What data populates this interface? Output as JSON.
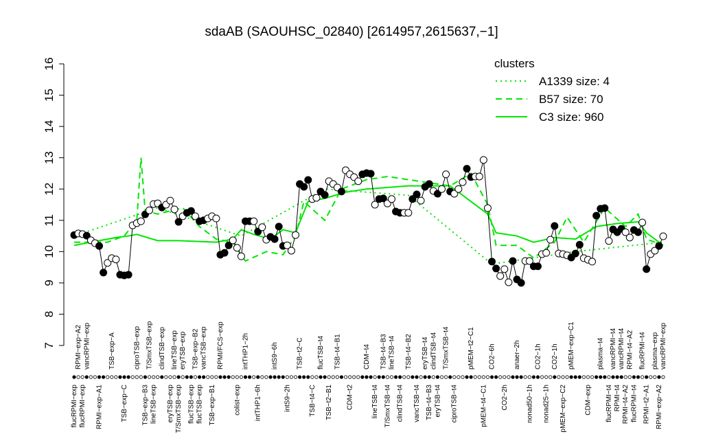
{
  "chart_data": {
    "type": "scatter",
    "title": "sdaAB (SAOUHSC_02840) [2614957,2615637,−1]",
    "ylim": [
      7,
      16
    ],
    "yticks": [
      7,
      8,
      9,
      10,
      11,
      12,
      13,
      14,
      15,
      16
    ],
    "categories": [
      "flucRPMI−exp",
      "RPMI−exp−A2",
      "flucRPMI−exp",
      "vancRPMI−exp",
      null,
      null,
      "RPMI−exp−A1",
      null,
      null,
      "TSB−exp−A",
      null,
      null,
      "TSB−exp−C",
      null,
      null,
      "ciproTSB−exp",
      null,
      "TSB−exp−B3",
      "T/SmxTSB−exp",
      "lineTSB−exp",
      null,
      "clindTSB−exp",
      null,
      "eryTSB−exp",
      "lineTSB−exp",
      "T/SmxTSB−exp",
      "eryTSB−exp",
      null,
      "flucTSB−exp",
      "TSB−exp−B2",
      "flucTSB−exp",
      "vancTSB−exp",
      null,
      "TSB−exp−B1",
      null,
      "RPMI/FCS−exp",
      null,
      null,
      null,
      "colist−exp",
      null,
      "intTHP1−2h",
      null,
      null,
      "intTHP1−6h",
      null,
      null,
      null,
      "intS9−6h",
      null,
      null,
      "intS9−2h",
      null,
      null,
      "TSB−t2−C",
      null,
      null,
      "TSB−t4−C",
      null,
      "flucTSB−t4",
      null,
      "TSB−t2−B1",
      null,
      "TSB−t4−B1",
      null,
      null,
      "CDM−t2",
      null,
      null,
      null,
      "CDM−t4",
      null,
      "lineTSB−t4",
      null,
      "TSB−t4−B3",
      "T/SmxTSB−t4",
      "lineTSB−t4",
      null,
      "clindTSB−t4",
      null,
      "TSB−t4−B2",
      null,
      "vancTSB−t4",
      null,
      "eryTSB−t4",
      "TSB−t4−B3",
      "clindTSB−t4",
      "eryTSB−t4",
      null,
      "T/SmxTSB−t4",
      null,
      "ciproTSB−t4",
      null,
      null,
      null,
      "pMEM−t2−C1",
      null,
      null,
      "pMEM−t4−C1",
      null,
      "CO2−6h",
      null,
      null,
      "CO2−2h",
      null,
      null,
      "anaer−2h",
      null,
      null,
      "nonad50−1h",
      null,
      "CO2−1h",
      null,
      "nonad25−1h",
      null,
      "CO2−1h",
      null,
      "pMEM−exp−C2",
      null,
      "pMEM−exp−C1",
      null,
      null,
      null,
      "CDM−exp",
      null,
      null,
      "plasma−t4",
      null,
      "flucRPMI−t4",
      "vancRPMI−t4",
      "RPMI−t4",
      "vancRPMI−t4",
      "RPMI−t4−A2",
      "RPMI−t4−A2",
      "flucRPMI−t4",
      null,
      "flucRPMI−t4",
      "RPMI−t2−A1",
      null,
      "plasma−exp",
      "RPMI−exp−A2",
      "vancRPMI−exp"
    ],
    "values": [
      10.53,
      10.58,
      10.56,
      10.51,
      10.36,
      10.27,
      10.18,
      9.33,
      9.64,
      9.79,
      9.75,
      9.26,
      9.24,
      9.26,
      10.84,
      10.91,
      10.97,
      11.19,
      11.32,
      11.52,
      11.54,
      11.41,
      11.5,
      11.63,
      11.35,
      10.95,
      11.13,
      11.24,
      11.3,
      11.13,
      10.97,
      11.0,
      11.06,
      11.13,
      11.06,
      9.9,
      9.96,
      10.2,
      10.36,
      10.12,
      9.85,
      10.97,
      10.97,
      10.97,
      10.64,
      10.78,
      10.38,
      10.47,
      10.4,
      10.8,
      10.18,
      10.2,
      10.03,
      10.53,
      12.16,
      12.07,
      12.29,
      11.68,
      11.72,
      11.92,
      11.81,
      12.25,
      12.16,
      12.05,
      11.92,
      12.6,
      12.47,
      12.38,
      12.25,
      12.47,
      12.51,
      12.49,
      11.5,
      11.68,
      11.7,
      11.54,
      11.68,
      11.28,
      11.24,
      11.24,
      11.24,
      11.68,
      11.83,
      11.63,
      12.07,
      12.16,
      11.94,
      11.85,
      12.0,
      12.47,
      11.92,
      11.85,
      12.0,
      12.22,
      12.65,
      12.38,
      12.4,
      12.4,
      12.93,
      11.39,
      9.68,
      9.46,
      9.22,
      9.44,
      9.02,
      9.7,
      9.11,
      9.0,
      9.7,
      9.7,
      9.53,
      9.53,
      9.92,
      9.96,
      10.38,
      10.82,
      9.94,
      9.92,
      9.88,
      9.81,
      9.94,
      10.22,
      9.79,
      9.74,
      9.68,
      11.15,
      11.37,
      11.39,
      10.34,
      10.71,
      10.62,
      10.73,
      10.62,
      10.45,
      10.69,
      10.62,
      10.93,
      9.44,
      9.92,
      10.03,
      10.18,
      10.49
    ],
    "filled": [
      1,
      0,
      0,
      1,
      0,
      0,
      1,
      1,
      0,
      0,
      0,
      1,
      1,
      1,
      0,
      0,
      0,
      1,
      0,
      0,
      0,
      1,
      0,
      0,
      0,
      1,
      0,
      1,
      1,
      0,
      1,
      1,
      0,
      0,
      0,
      1,
      1,
      1,
      0,
      0,
      0,
      1,
      1,
      0,
      1,
      0,
      0,
      1,
      1,
      1,
      1,
      0,
      0,
      0,
      1,
      1,
      1,
      0,
      0,
      1,
      1,
      0,
      0,
      0,
      1,
      0,
      0,
      0,
      0,
      1,
      1,
      1,
      0,
      1,
      1,
      0,
      0,
      1,
      1,
      0,
      0,
      1,
      1,
      0,
      1,
      1,
      0,
      1,
      0,
      0,
      1,
      0,
      0,
      0,
      1,
      1,
      0,
      0,
      0,
      0,
      1,
      1,
      0,
      0,
      0,
      1,
      1,
      1,
      0,
      0,
      1,
      1,
      0,
      0,
      0,
      1,
      0,
      0,
      0,
      1,
      1,
      1,
      0,
      0,
      0,
      1,
      1,
      1,
      0,
      1,
      1,
      1,
      0,
      0,
      1,
      1,
      0,
      1,
      0,
      0,
      1,
      0
    ],
    "legend_title": "clusters",
    "legend_color": "#00e600",
    "series": [
      {
        "name": "A1339 size: 4",
        "style": "dotted",
        "color": "#00e600",
        "x": [
          0,
          20,
          40,
          60,
          80,
          100,
          120,
          141
        ],
        "values": [
          10.5,
          11.4,
          10.5,
          12.0,
          11.8,
          9.6,
          10.0,
          10.3
        ]
      },
      {
        "name": "B57 size: 70",
        "style": "dashed",
        "color": "#00e600",
        "x": [
          0,
          8,
          12,
          15,
          16,
          17,
          20,
          26,
          30,
          34,
          38,
          41,
          46,
          50,
          53,
          55,
          60,
          64,
          70,
          75,
          90,
          95,
          99,
          101,
          106,
          110,
          115,
          118,
          122,
          127,
          132,
          135,
          137,
          141
        ],
        "values": [
          10.3,
          10.3,
          10.5,
          11.0,
          13.0,
          11.3,
          11.2,
          11.4,
          10.8,
          10.4,
          10.3,
          9.7,
          10.0,
          9.9,
          10.5,
          11.6,
          11.0,
          12.0,
          12.3,
          12.4,
          12.1,
          12.5,
          11.5,
          10.2,
          10.2,
          9.8,
          10.3,
          11.1,
          10.3,
          11.4,
          10.8,
          11.2,
          10.4,
          10.2
        ]
      },
      {
        "name": "C3 size: 960",
        "style": "solid",
        "color": "#00e600",
        "x": [
          0,
          6,
          10,
          13,
          15,
          20,
          25,
          34,
          38,
          40,
          43,
          47,
          50,
          53,
          56,
          60,
          65,
          70,
          80,
          90,
          95,
          99,
          101,
          106,
          110,
          115,
          120,
          125,
          130,
          135,
          137,
          141
        ],
        "values": [
          10.2,
          10.35,
          10.45,
          10.5,
          10.55,
          10.35,
          10.35,
          10.3,
          10.4,
          10.7,
          10.55,
          10.4,
          10.7,
          10.6,
          11.6,
          11.7,
          11.9,
          12.0,
          12.1,
          12.1,
          11.6,
          11.2,
          10.6,
          10.5,
          10.3,
          10.45,
          10.4,
          10.8,
          10.9,
          10.95,
          10.6,
          10.2
        ]
      }
    ]
  }
}
